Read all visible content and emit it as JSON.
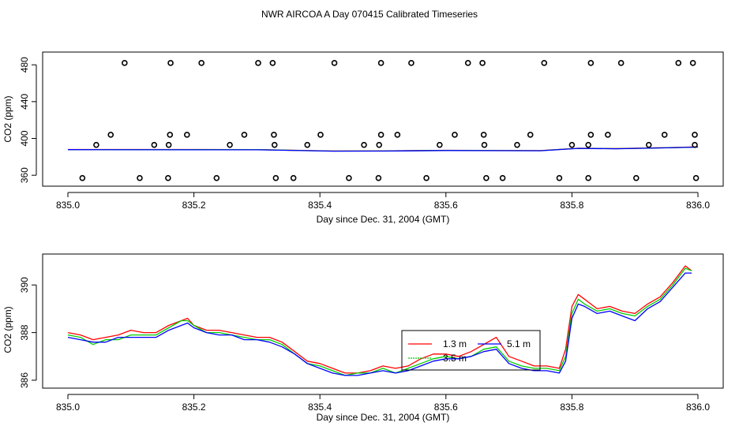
{
  "title": "NWR AIRCOA A  Day 070415  Calibrated Timeseries",
  "colors": {
    "red": "#ff0000",
    "green": "#00cc00",
    "blue": "#0000ff",
    "black": "#000000"
  },
  "chart_data": [
    {
      "type": "scatter",
      "xlabel": "Day since Dec. 31, 2004 (GMT)",
      "ylabel": "CO2 (ppm)",
      "xlim": [
        835.0,
        836.0
      ],
      "ylim": [
        355,
        487
      ],
      "x_ticks": [
        835.0,
        835.2,
        835.4,
        835.6,
        835.8,
        836.0
      ],
      "x_tick_labels": [
        "835.0",
        "835.2",
        "835.4",
        "835.6",
        "835.8",
        "836.0"
      ],
      "y_ticks": [
        360,
        400,
        440,
        480
      ],
      "y_tick_labels": [
        "360",
        "400",
        "440",
        "480"
      ],
      "points": [
        [
          835.09,
          482
        ],
        [
          835.163,
          482
        ],
        [
          835.212,
          482
        ],
        [
          835.302,
          482
        ],
        [
          835.325,
          482
        ],
        [
          835.423,
          482
        ],
        [
          835.497,
          482
        ],
        [
          835.545,
          482
        ],
        [
          835.635,
          482
        ],
        [
          835.658,
          482
        ],
        [
          835.756,
          482
        ],
        [
          835.83,
          482
        ],
        [
          835.878,
          482
        ],
        [
          835.969,
          482
        ],
        [
          835.992,
          482
        ],
        [
          835.068,
          404
        ],
        [
          835.162,
          404
        ],
        [
          835.189,
          404
        ],
        [
          835.28,
          404
        ],
        [
          835.327,
          404
        ],
        [
          835.401,
          404
        ],
        [
          835.497,
          404
        ],
        [
          835.523,
          404
        ],
        [
          835.614,
          404
        ],
        [
          835.66,
          404
        ],
        [
          835.734,
          404
        ],
        [
          835.83,
          404
        ],
        [
          835.857,
          404
        ],
        [
          835.947,
          404
        ],
        [
          835.995,
          404
        ],
        [
          835.045,
          393
        ],
        [
          835.137,
          393
        ],
        [
          835.16,
          393
        ],
        [
          835.257,
          393
        ],
        [
          835.328,
          393
        ],
        [
          835.38,
          393
        ],
        [
          835.47,
          393
        ],
        [
          835.494,
          393
        ],
        [
          835.59,
          393
        ],
        [
          835.661,
          393
        ],
        [
          835.713,
          393
        ],
        [
          835.8,
          393
        ],
        [
          835.826,
          393
        ],
        [
          835.922,
          393
        ],
        [
          835.995,
          393
        ],
        [
          835.023,
          357
        ],
        [
          835.114,
          357
        ],
        [
          835.159,
          357
        ],
        [
          835.236,
          357
        ],
        [
          835.33,
          357
        ],
        [
          835.358,
          357
        ],
        [
          835.446,
          357
        ],
        [
          835.493,
          357
        ],
        [
          835.569,
          357
        ],
        [
          835.664,
          357
        ],
        [
          835.69,
          357
        ],
        [
          835.78,
          357
        ],
        [
          835.826,
          357
        ],
        [
          835.902,
          357
        ],
        [
          835.997,
          357
        ]
      ],
      "series": [
        {
          "name": "red",
          "color": "#ff0000",
          "x": [
            835.0,
            835.3,
            835.42,
            835.5,
            835.6,
            835.75,
            835.81,
            835.87,
            835.95,
            836.0
          ],
          "values": [
            388.0,
            387.9,
            386.4,
            386.5,
            387.1,
            386.8,
            389.4,
            389.0,
            390.0,
            390.8
          ]
        },
        {
          "name": "green",
          "color": "#00cc00",
          "x": [
            835.0,
            835.3,
            835.42,
            835.5,
            835.6,
            835.75,
            835.81,
            835.87,
            835.95,
            836.0
          ],
          "values": [
            387.9,
            387.8,
            386.3,
            386.4,
            387.0,
            386.7,
            389.3,
            388.9,
            389.9,
            390.7
          ]
        },
        {
          "name": "blue",
          "color": "#0000ff",
          "x": [
            835.0,
            835.3,
            835.42,
            835.5,
            835.6,
            835.75,
            835.81,
            835.87,
            835.95,
            836.0
          ],
          "values": [
            387.8,
            387.7,
            386.2,
            386.3,
            386.9,
            386.6,
            389.2,
            388.8,
            389.8,
            390.6
          ]
        }
      ]
    },
    {
      "type": "line",
      "xlabel": "Day since Dec. 31, 2004 (GMT)",
      "ylabel": "CO2 (ppm)",
      "xlim": [
        835.0,
        836.0
      ],
      "ylim": [
        385.9,
        391.0
      ],
      "x_ticks": [
        835.0,
        835.2,
        835.4,
        835.6,
        835.8,
        836.0
      ],
      "x_tick_labels": [
        "835.0",
        "835.2",
        "835.4",
        "835.6",
        "835.8",
        "836.0"
      ],
      "y_ticks": [
        386,
        388,
        390
      ],
      "y_tick_labels": [
        "386",
        "388",
        "390"
      ],
      "legend": {
        "position": "center-right",
        "entries": [
          "1.3 m",
          "5.1 m",
          "3.5 m"
        ]
      },
      "series": [
        {
          "name": "1.3 m",
          "color": "#ff0000",
          "x": [
            835.0,
            835.02,
            835.04,
            835.06,
            835.08,
            835.1,
            835.12,
            835.14,
            835.16,
            835.18,
            835.19,
            835.2,
            835.22,
            835.24,
            835.26,
            835.28,
            835.3,
            835.32,
            835.34,
            835.36,
            835.38,
            835.4,
            835.42,
            835.44,
            835.46,
            835.48,
            835.5,
            835.52,
            835.54,
            835.56,
            835.58,
            835.6,
            835.62,
            835.64,
            835.66,
            835.68,
            835.7,
            835.72,
            835.74,
            835.76,
            835.78,
            835.79,
            835.8,
            835.81,
            835.82,
            835.84,
            835.86,
            835.88,
            835.9,
            835.92,
            835.94,
            835.96,
            835.98,
            835.99
          ],
          "values": [
            388.0,
            387.9,
            387.7,
            387.8,
            387.9,
            388.1,
            388.0,
            388.0,
            388.3,
            388.5,
            388.6,
            388.3,
            388.1,
            388.1,
            388.0,
            387.9,
            387.8,
            387.8,
            387.6,
            387.2,
            386.8,
            386.7,
            386.5,
            386.3,
            386.3,
            386.4,
            386.6,
            386.5,
            386.6,
            386.9,
            387.1,
            387.1,
            387.0,
            387.2,
            387.5,
            387.8,
            387.0,
            386.8,
            386.6,
            386.6,
            386.5,
            387.3,
            389.1,
            389.6,
            389.4,
            389.0,
            389.1,
            388.9,
            388.8,
            389.2,
            389.5,
            390.1,
            390.8,
            390.6
          ]
        },
        {
          "name": "3.5 m",
          "color": "#00cc00",
          "x": [
            835.0,
            835.02,
            835.04,
            835.06,
            835.08,
            835.1,
            835.12,
            835.14,
            835.16,
            835.18,
            835.19,
            835.2,
            835.22,
            835.24,
            835.26,
            835.28,
            835.3,
            835.32,
            835.34,
            835.36,
            835.38,
            835.4,
            835.42,
            835.44,
            835.46,
            835.48,
            835.5,
            835.52,
            835.54,
            835.56,
            835.58,
            835.6,
            835.62,
            835.64,
            835.66,
            835.68,
            835.7,
            835.72,
            835.74,
            835.76,
            835.78,
            835.79,
            835.8,
            835.81,
            835.82,
            835.84,
            835.86,
            835.88,
            835.9,
            835.92,
            835.94,
            835.96,
            835.98,
            835.99
          ],
          "values": [
            387.9,
            387.8,
            387.5,
            387.7,
            387.7,
            387.9,
            387.9,
            387.9,
            388.2,
            388.5,
            388.5,
            388.3,
            388.0,
            388.0,
            387.9,
            387.8,
            387.7,
            387.7,
            387.5,
            387.1,
            386.7,
            386.6,
            386.4,
            386.2,
            386.3,
            386.3,
            386.5,
            386.3,
            386.5,
            386.7,
            386.9,
            387.0,
            386.9,
            387.0,
            387.3,
            387.4,
            386.8,
            386.6,
            386.5,
            386.5,
            386.4,
            387.0,
            388.8,
            389.4,
            389.2,
            388.9,
            389.0,
            388.8,
            388.7,
            389.1,
            389.4,
            390.0,
            390.7,
            390.6
          ]
        },
        {
          "name": "5.1 m",
          "color": "#0000ff",
          "x": [
            835.0,
            835.02,
            835.04,
            835.06,
            835.08,
            835.1,
            835.12,
            835.14,
            835.16,
            835.18,
            835.19,
            835.2,
            835.22,
            835.24,
            835.26,
            835.28,
            835.3,
            835.32,
            835.34,
            835.36,
            835.38,
            835.4,
            835.42,
            835.44,
            835.46,
            835.48,
            835.5,
            835.52,
            835.54,
            835.56,
            835.58,
            835.6,
            835.62,
            835.64,
            835.66,
            835.68,
            835.7,
            835.72,
            835.74,
            835.76,
            835.78,
            835.79,
            835.8,
            835.81,
            835.82,
            835.84,
            835.86,
            835.88,
            835.9,
            835.92,
            835.94,
            835.96,
            835.98,
            835.99
          ],
          "values": [
            387.8,
            387.7,
            387.6,
            387.6,
            387.8,
            387.8,
            387.8,
            387.8,
            388.1,
            388.3,
            388.4,
            388.2,
            388.0,
            387.9,
            387.9,
            387.7,
            387.7,
            387.6,
            387.4,
            387.1,
            386.7,
            386.5,
            386.3,
            386.2,
            386.2,
            386.3,
            386.4,
            386.3,
            386.4,
            386.6,
            386.8,
            386.9,
            386.9,
            387.0,
            387.2,
            387.3,
            386.7,
            386.5,
            386.4,
            386.4,
            386.3,
            386.8,
            388.6,
            389.2,
            389.1,
            388.8,
            388.9,
            388.7,
            388.5,
            389.0,
            389.3,
            389.9,
            390.5,
            390.5
          ]
        }
      ]
    }
  ]
}
